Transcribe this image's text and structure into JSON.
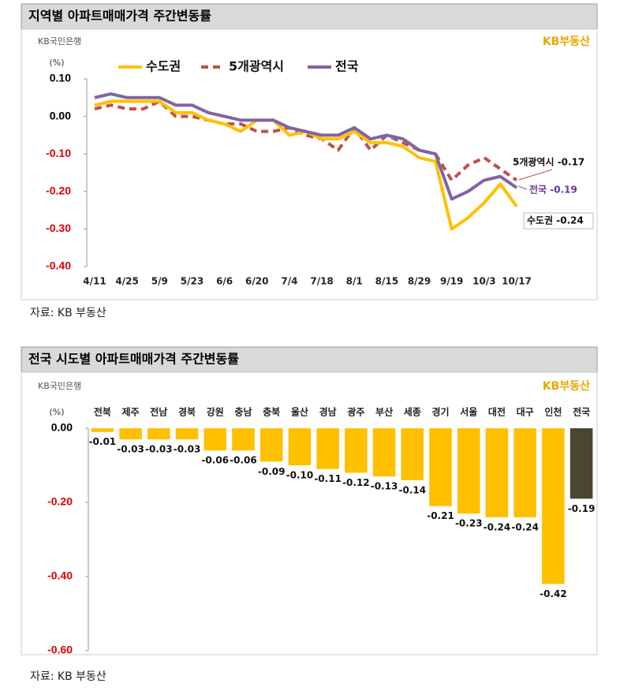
{
  "chart_data": [
    {
      "type": "line",
      "title": "지역별 아파트매매가격 주간변동률",
      "logo_left": "KB국민은행",
      "logo_right": "KB부동산",
      "y_label": "(%)",
      "source": "자료: KB 부동산",
      "categories": [
        "4/11",
        null,
        "4/25",
        null,
        "5/9",
        null,
        "5/23",
        null,
        "6/6",
        null,
        "6/20",
        null,
        "7/4",
        null,
        "7/18",
        null,
        "8/1",
        null,
        "8/15",
        null,
        "8/29",
        null,
        "9/19",
        null,
        "10/3",
        null,
        "10/17"
      ],
      "series": [
        {
          "name": "수도권",
          "color": "#ffc000",
          "dash": false,
          "values": [
            0.03,
            0.04,
            0.04,
            0.04,
            0.04,
            0.01,
            0.01,
            -0.01,
            -0.02,
            -0.04,
            -0.01,
            -0.01,
            -0.05,
            -0.04,
            -0.06,
            -0.06,
            -0.04,
            -0.07,
            -0.07,
            -0.08,
            -0.11,
            -0.12,
            -0.3,
            -0.27,
            -0.23,
            -0.18,
            -0.24
          ]
        },
        {
          "name": "5개광역시",
          "color": "#c0504d",
          "dash": true,
          "values": [
            0.02,
            0.03,
            0.02,
            0.02,
            0.04,
            0.0,
            0.0,
            -0.01,
            -0.02,
            -0.02,
            -0.04,
            -0.04,
            -0.03,
            -0.05,
            -0.06,
            -0.09,
            -0.03,
            -0.09,
            -0.05,
            -0.07,
            -0.09,
            -0.1,
            -0.17,
            -0.13,
            -0.11,
            -0.14,
            -0.17
          ]
        },
        {
          "name": "전국",
          "color": "#8064a2",
          "dash": false,
          "values": [
            0.05,
            0.06,
            0.05,
            0.05,
            0.05,
            0.03,
            0.03,
            0.01,
            0.0,
            -0.01,
            -0.01,
            -0.01,
            -0.03,
            -0.04,
            -0.05,
            -0.05,
            -0.03,
            -0.06,
            -0.05,
            -0.06,
            -0.09,
            -0.1,
            -0.22,
            -0.2,
            -0.17,
            -0.16,
            -0.19
          ]
        }
      ],
      "annotations": [
        "5개광역시 -0.17",
        "전국 -0.19",
        "수도권 -0.24"
      ],
      "ylim": [
        -0.4,
        0.1
      ],
      "yticks": [
        {
          "value": 0.1,
          "label": "0.10"
        },
        {
          "value": 0,
          "label": "0.00"
        },
        {
          "value": -0.1,
          "label": "-0.10"
        },
        {
          "value": -0.2,
          "label": "-0.20"
        },
        {
          "value": -0.3,
          "label": "-0.30"
        },
        {
          "value": -0.4,
          "label": "-0.40"
        }
      ]
    },
    {
      "type": "bar",
      "title": "전국 시도별 아파트매매가격 주간변동률",
      "logo_left": "KB국민은행",
      "logo_right": "KB부동산",
      "y_label": "(%)",
      "source": "자료: KB 부동산",
      "categories": [
        "전북",
        "제주",
        "전남",
        "경북",
        "강원",
        "충남",
        "충북",
        "울산",
        "경남",
        "광주",
        "부산",
        "세종",
        "경기",
        "서울",
        "대전",
        "대구",
        "인천",
        "전국"
      ],
      "values": [
        -0.01,
        -0.03,
        -0.03,
        -0.03,
        -0.06,
        -0.06,
        -0.09,
        -0.1,
        -0.11,
        -0.12,
        -0.13,
        -0.14,
        -0.21,
        -0.23,
        -0.24,
        -0.24,
        -0.42,
        -0.19
      ],
      "value_labels": [
        "-0.01",
        "-0.03",
        "-0.03",
        "-0.03",
        "-0.06",
        "-0.06",
        "-0.09",
        "-0.10",
        "-0.11",
        "-0.12",
        "-0.13",
        "-0.14",
        "-0.21",
        "-0.23",
        "-0.24",
        "-0.24",
        "-0.42",
        "-0.19"
      ],
      "colors": [
        "#ffc000",
        "#ffc000",
        "#ffc000",
        "#ffc000",
        "#ffc000",
        "#ffc000",
        "#ffc000",
        "#ffc000",
        "#ffc000",
        "#ffc000",
        "#ffc000",
        "#ffc000",
        "#ffc000",
        "#ffc000",
        "#ffc000",
        "#ffc000",
        "#ffc000",
        "#4a4632"
      ],
      "ylim": [
        -0.6,
        0
      ],
      "yticks": [
        {
          "value": 0,
          "label": "0.00"
        },
        {
          "value": -0.2,
          "label": "-0.20"
        },
        {
          "value": -0.4,
          "label": "-0.40"
        },
        {
          "value": -0.6,
          "label": "-0.60"
        }
      ]
    }
  ]
}
